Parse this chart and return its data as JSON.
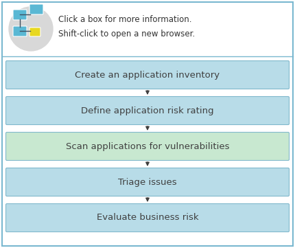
{
  "boxes": [
    {
      "label": "Create an application inventory",
      "color": "#b8dce8"
    },
    {
      "label": "Define application risk rating",
      "color": "#b8dce8"
    },
    {
      "label": "Scan applications for vulnerabilities",
      "color": "#c8e8d0"
    },
    {
      "label": "Triage issues",
      "color": "#b8dce8"
    },
    {
      "label": "Evaluate business risk",
      "color": "#b8dce8"
    }
  ],
  "header_line1": "Click a box for more information.",
  "header_line2": "Shift-click to open a new browser.",
  "box_edge_color": "#80b8cc",
  "outer_bg": "#ffffff",
  "outer_border_color": "#7ab8d0",
  "content_bg": "#ffffff",
  "arrow_color": "#404040",
  "text_color": "#404040",
  "font_size": 9.5,
  "header_font_size": 8.5,
  "fig_width": 4.3,
  "fig_height": 3.61
}
